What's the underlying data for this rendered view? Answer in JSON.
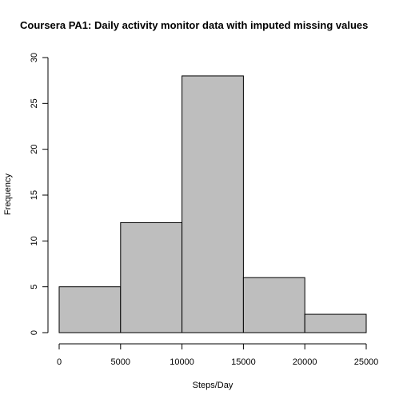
{
  "chart_data": {
    "type": "bar",
    "title": "Coursera PA1: Daily activity monitor data with imputed missing values",
    "xlabel": "Steps/Day",
    "ylabel": "Frequency",
    "bins": [
      {
        "from": 0,
        "to": 5000,
        "value": 5
      },
      {
        "from": 5000,
        "to": 10000,
        "value": 12
      },
      {
        "from": 10000,
        "to": 15000,
        "value": 28
      },
      {
        "from": 15000,
        "to": 20000,
        "value": 6
      },
      {
        "from": 20000,
        "to": 25000,
        "value": 2
      }
    ],
    "xlim": [
      0,
      25000
    ],
    "ylim": [
      0,
      30
    ],
    "xticks": [
      0,
      5000,
      10000,
      15000,
      20000,
      25000
    ],
    "xtick_labels": [
      "0",
      "5000",
      "10000",
      "15000",
      "20000",
      "25000"
    ],
    "yticks": [
      0,
      5,
      10,
      15,
      20,
      25,
      30
    ],
    "ytick_labels": [
      "0",
      "5",
      "10",
      "15",
      "20",
      "25",
      "30"
    ],
    "bar_fill": "#bebebe",
    "bar_stroke": "#000000",
    "grid": false,
    "legend": "none"
  }
}
